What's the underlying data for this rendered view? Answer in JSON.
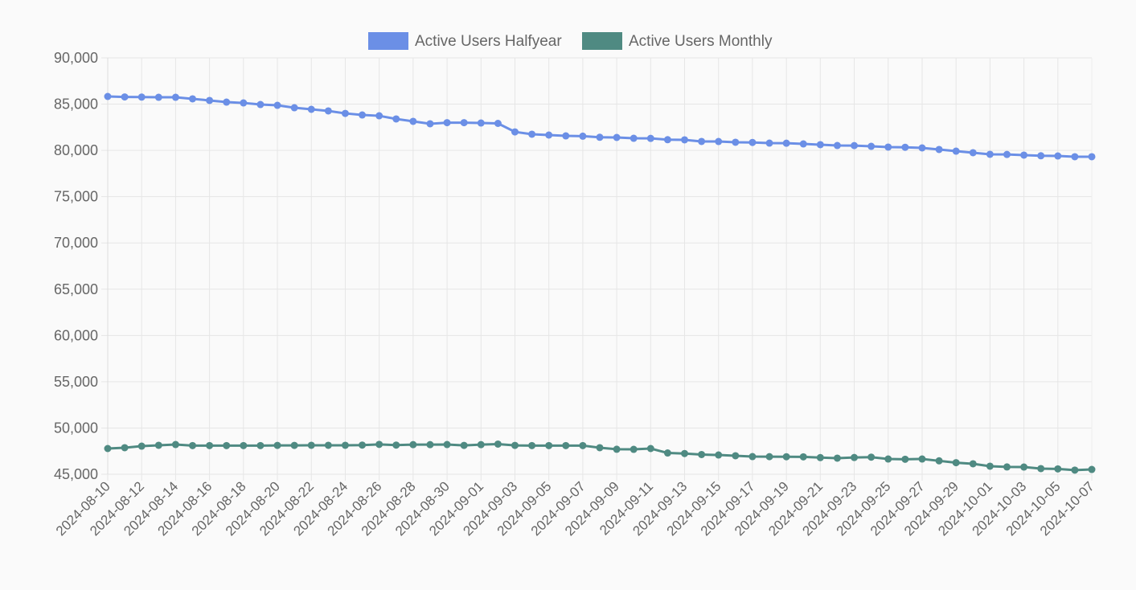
{
  "chart_data": {
    "type": "line",
    "title": "",
    "xlabel": "",
    "ylabel": "",
    "ylim": [
      45000,
      90000
    ],
    "ytick_step": 5000,
    "grid": true,
    "legend_placement": "top-center",
    "x": [
      "2024-08-10",
      "2024-08-11",
      "2024-08-12",
      "2024-08-13",
      "2024-08-14",
      "2024-08-15",
      "2024-08-16",
      "2024-08-17",
      "2024-08-18",
      "2024-08-19",
      "2024-08-20",
      "2024-08-21",
      "2024-08-22",
      "2024-08-23",
      "2024-08-24",
      "2024-08-25",
      "2024-08-26",
      "2024-08-27",
      "2024-08-28",
      "2024-08-29",
      "2024-08-30",
      "2024-08-31",
      "2024-09-01",
      "2024-09-02",
      "2024-09-03",
      "2024-09-04",
      "2024-09-05",
      "2024-09-06",
      "2024-09-07",
      "2024-09-08",
      "2024-09-09",
      "2024-09-10",
      "2024-09-11",
      "2024-09-12",
      "2024-09-13",
      "2024-09-14",
      "2024-09-15",
      "2024-09-16",
      "2024-09-17",
      "2024-09-18",
      "2024-09-19",
      "2024-09-20",
      "2024-09-21",
      "2024-09-22",
      "2024-09-23",
      "2024-09-24",
      "2024-09-25",
      "2024-09-26",
      "2024-09-27",
      "2024-09-28",
      "2024-09-29",
      "2024-09-30",
      "2024-10-01",
      "2024-10-02",
      "2024-10-03",
      "2024-10-04",
      "2024-10-05",
      "2024-10-06",
      "2024-10-07"
    ],
    "series": [
      {
        "name": "Active Users Halfyear",
        "color": "#6b8fe6",
        "values": [
          85830,
          85780,
          85760,
          85740,
          85740,
          85570,
          85400,
          85220,
          85130,
          84960,
          84870,
          84610,
          84440,
          84270,
          84000,
          83830,
          83740,
          83400,
          83140,
          82880,
          83000,
          83000,
          82960,
          82920,
          82000,
          81750,
          81660,
          81570,
          81540,
          81420,
          81400,
          81310,
          81300,
          81160,
          81140,
          80970,
          80960,
          80880,
          80860,
          80790,
          80780,
          80700,
          80620,
          80530,
          80520,
          80440,
          80360,
          80340,
          80270,
          80100,
          79920,
          79750,
          79580,
          79560,
          79490,
          79420,
          79400,
          79320,
          79320
        ]
      },
      {
        "name": "Active Users Monthly",
        "color": "#4f8a82",
        "values": [
          47780,
          47870,
          48040,
          48130,
          48210,
          48100,
          48100,
          48100,
          48100,
          48100,
          48120,
          48120,
          48130,
          48130,
          48130,
          48150,
          48230,
          48150,
          48200,
          48200,
          48210,
          48120,
          48200,
          48260,
          48120,
          48100,
          48100,
          48100,
          48100,
          47870,
          47700,
          47690,
          47780,
          47300,
          47240,
          47130,
          47080,
          47000,
          46910,
          46900,
          46890,
          46880,
          46800,
          46740,
          46810,
          46850,
          46650,
          46620,
          46650,
          46450,
          46250,
          46130,
          45870,
          45790,
          45780,
          45610,
          45580,
          45450,
          45520
        ]
      }
    ]
  }
}
